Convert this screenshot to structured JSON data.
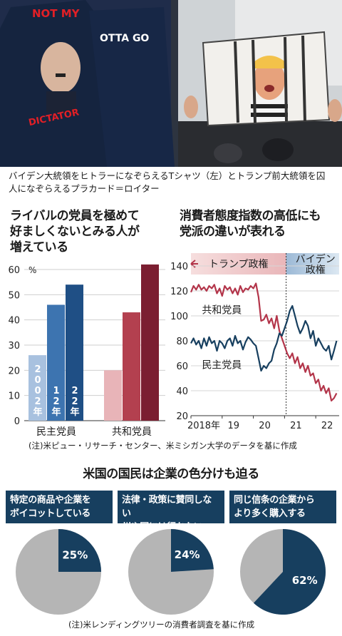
{
  "photo": {
    "shirt1_text": [
      "NOT MY",
      "DICTATOR"
    ],
    "shirt2_text": "OTTA GO"
  },
  "caption": "バイデン大統領をヒトラーになぞらえるTシャツ（左）とトランプ前大統領を囚人になぞらえるプラカード＝ロイター",
  "bar_section": {
    "title_lines": [
      "ライバルの党員を極めて",
      "好ましくないとみる人が",
      "増えている"
    ]
  },
  "line_section": {
    "title_lines": [
      "消費者態度指数の高低にも",
      "党派の違いが表れる"
    ],
    "band_trump": "トランプ政権",
    "band_biden": [
      "バイデン",
      "政権"
    ]
  },
  "note1": "(注)米ピュー・リサーチ・センター、米ミシガン大学のデータを基に作成",
  "pie_section": {
    "title": "米国の国民は企業の色分けも迫る",
    "headers": [
      [
        "特定の商品や企業を",
        "ボイコットしている"
      ],
      [
        "法律・政策に賛同しない",
        "州や国には行かない"
      ],
      [
        "同じ信条の企業から",
        "より多く購入する"
      ]
    ]
  },
  "note2": "(注)米レンディングツリーの消費者調査を基に作成",
  "chart_data": [
    {
      "type": "bar",
      "categories": [
        "民主党員",
        "共和党員"
      ],
      "series": [
        {
          "name": "2002年",
          "values": [
            26,
            20
          ]
        },
        {
          "name": "12年",
          "values": [
            46,
            43
          ]
        },
        {
          "name": "22年",
          "values": [
            54,
            62
          ]
        }
      ],
      "ylim": [
        0,
        60
      ],
      "yticks": [
        0,
        10,
        20,
        30,
        40,
        50,
        60
      ],
      "yunit": "%",
      "colors": {
        "民主党員": [
          "#a8c1df",
          "#3d74b0",
          "#1f4f85"
        ],
        "共和党員": [
          "#e8b4b8",
          "#b3404f",
          "#7b1e31"
        ]
      }
    },
    {
      "type": "line",
      "ylim": [
        20,
        140
      ],
      "yticks": [
        20,
        40,
        60,
        80,
        100,
        120,
        140
      ],
      "xlim": [
        2018,
        2022.75
      ],
      "xticks": [
        {
          "value": 2018,
          "label": "2018年"
        },
        {
          "value": 2019,
          "label": "19"
        },
        {
          "value": 2020,
          "label": "20"
        },
        {
          "value": 2021,
          "label": "21"
        },
        {
          "value": 2022,
          "label": "22"
        }
      ],
      "divider_x": 2021.05,
      "series": [
        {
          "name": "共和党員",
          "color": "#b3354a",
          "x": [
            2018.0,
            2018.083,
            2018.167,
            2018.25,
            2018.333,
            2018.417,
            2018.5,
            2018.583,
            2018.667,
            2018.75,
            2018.833,
            2018.917,
            2019.0,
            2019.083,
            2019.167,
            2019.25,
            2019.333,
            2019.417,
            2019.5,
            2019.583,
            2019.667,
            2019.75,
            2019.833,
            2019.917,
            2020.0,
            2020.083,
            2020.167,
            2020.25,
            2020.333,
            2020.417,
            2020.5,
            2020.583,
            2020.667,
            2020.75,
            2020.833,
            2020.917,
            2021.0,
            2021.083,
            2021.167,
            2021.25,
            2021.333,
            2021.417,
            2021.5,
            2021.583,
            2021.667,
            2021.75,
            2021.833,
            2021.917,
            2022.0,
            2022.083,
            2022.167,
            2022.25,
            2022.333,
            2022.417,
            2022.5,
            2022.583,
            2022.667
          ],
          "y": [
            119,
            124,
            121,
            125,
            121,
            123,
            120,
            124,
            122,
            125,
            118,
            122,
            116,
            124,
            121,
            123,
            118,
            122,
            117,
            124,
            119,
            122,
            121,
            124,
            122,
            126,
            115,
            96,
            97,
            101,
            94,
            98,
            90,
            100,
            88,
            82,
            76,
            70,
            66,
            70,
            62,
            67,
            58,
            62,
            55,
            60,
            52,
            54,
            46,
            49,
            40,
            44,
            38,
            42,
            32,
            34,
            38
          ]
        },
        {
          "name": "民主党員",
          "color": "#173f5f",
          "x": [
            2018.0,
            2018.083,
            2018.167,
            2018.25,
            2018.333,
            2018.417,
            2018.5,
            2018.583,
            2018.667,
            2018.75,
            2018.833,
            2018.917,
            2019.0,
            2019.083,
            2019.167,
            2019.25,
            2019.333,
            2019.417,
            2019.5,
            2019.583,
            2019.667,
            2019.75,
            2019.833,
            2019.917,
            2020.0,
            2020.083,
            2020.167,
            2020.25,
            2020.333,
            2020.417,
            2020.5,
            2020.583,
            2020.667,
            2020.75,
            2020.833,
            2020.917,
            2021.0,
            2021.083,
            2021.167,
            2021.25,
            2021.333,
            2021.417,
            2021.5,
            2021.583,
            2021.667,
            2021.75,
            2021.833,
            2021.917,
            2022.0,
            2022.083,
            2022.167,
            2022.25,
            2022.333,
            2022.417,
            2022.5,
            2022.583,
            2022.667
          ],
          "y": [
            78,
            82,
            77,
            80,
            74,
            82,
            76,
            83,
            78,
            80,
            72,
            80,
            78,
            74,
            80,
            82,
            76,
            84,
            78,
            80,
            73,
            79,
            83,
            81,
            78,
            76,
            66,
            56,
            60,
            58,
            62,
            64,
            73,
            78,
            86,
            84,
            90,
            96,
            104,
            108,
            100,
            92,
            86,
            90,
            96,
            92,
            82,
            88,
            76,
            82,
            78,
            74,
            72,
            76,
            65,
            72,
            80
          ]
        }
      ],
      "labels": [
        {
          "text": "共和党員",
          "series": "共和党員"
        },
        {
          "text": "民主党員",
          "series": "民主党員"
        }
      ]
    },
    {
      "type": "pie",
      "items": [
        {
          "title": "特定の商品や企業をボイコットしている",
          "value": 25,
          "label": "25%"
        },
        {
          "title": "法律・政策に賛同しない州や国には行かない",
          "value": 24,
          "label": "24%"
        },
        {
          "title": "同じ信条の企業からより多く購入する",
          "value": 62,
          "label": "62%"
        }
      ],
      "colors": {
        "slice": "#173f5f",
        "rest": "#b5b5b5"
      }
    }
  ]
}
